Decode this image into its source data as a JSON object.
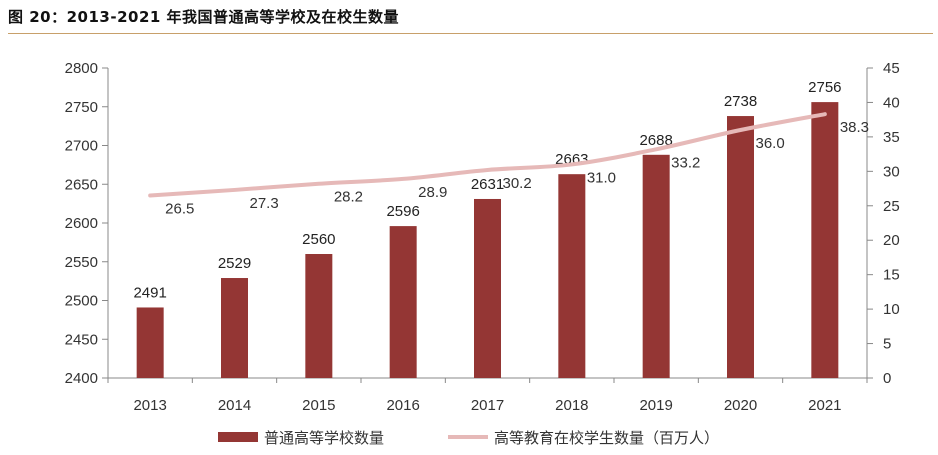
{
  "title": "图 20：2013-2021 年我国普通高等学校及在校生数量",
  "colors": {
    "bar": "#943634",
    "line": "#e6b9b8",
    "title_rule": "#c8a06a"
  },
  "chart_data": {
    "type": "bar",
    "categories": [
      "2013",
      "2014",
      "2015",
      "2016",
      "2017",
      "2018",
      "2019",
      "2020",
      "2021"
    ],
    "series": [
      {
        "name": "普通高等学校数量",
        "type": "bar",
        "axis": "left",
        "values": [
          2491,
          2529,
          2560,
          2596,
          2631,
          2663,
          2688,
          2738,
          2756
        ]
      },
      {
        "name": "高等教育在校学生数量（百万人）",
        "type": "line",
        "axis": "right",
        "values": [
          26.5,
          27.3,
          28.2,
          28.9,
          30.2,
          31.0,
          33.2,
          36.0,
          38.3
        ]
      }
    ],
    "line_labels": [
      "26.5",
      "27.3",
      "28.2",
      "28.9",
      "30.2",
      "31.0",
      "33.2",
      "36.0",
      "38.3"
    ],
    "y_left": {
      "lim": [
        2400,
        2800
      ],
      "ticks": [
        "2400",
        "2450",
        "2500",
        "2550",
        "2600",
        "2650",
        "2700",
        "2750",
        "2800"
      ]
    },
    "y_right": {
      "lim": [
        0,
        45
      ],
      "ticks": [
        "0",
        "5",
        "10",
        "15",
        "20",
        "25",
        "30",
        "35",
        "40",
        "45"
      ]
    },
    "grid": false,
    "legend_position": "bottom"
  }
}
